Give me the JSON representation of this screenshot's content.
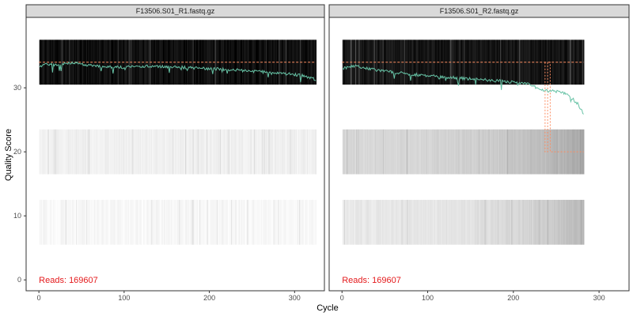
{
  "chart_data": {
    "type": "line",
    "xlabel": "Cycle",
    "ylabel": "Quality Score",
    "ylim": [
      -1.7,
      41
    ],
    "yticks": [
      0,
      10,
      20,
      30
    ],
    "xticks": [
      0,
      100,
      200,
      300
    ],
    "grid": false,
    "colors": {
      "mean_line": "#66c2a5",
      "quartile_line": "#fc8d62",
      "reads_text": "#e41a1c",
      "heatmap_dark": "#000000",
      "heatmap_light": "#ffffff"
    },
    "panels": [
      {
        "title": "F13506.S01_R1.fastq.gz",
        "reads_label": "Reads:  169607",
        "xlim": [
          -15,
          335
        ],
        "cycles": 325,
        "median": [
          [
            0,
            34
          ],
          [
            325,
            34
          ]
        ],
        "mean": [
          [
            0,
            33.2
          ],
          [
            10,
            33.8
          ],
          [
            20,
            33.6
          ],
          [
            40,
            33.9
          ],
          [
            60,
            33.5
          ],
          [
            80,
            33.3
          ],
          [
            100,
            33.2
          ],
          [
            120,
            33.4
          ],
          [
            150,
            33.3
          ],
          [
            180,
            33.1
          ],
          [
            200,
            33.0
          ],
          [
            230,
            32.8
          ],
          [
            260,
            32.5
          ],
          [
            290,
            32.2
          ],
          [
            310,
            31.9
          ],
          [
            325,
            31.3
          ]
        ],
        "cumulative": [],
        "heatmap_bands": [
          {
            "ymin": 30.5,
            "ymax": 37.5,
            "intensity": 0.95
          },
          {
            "ymin": 16.5,
            "ymax": 23.5,
            "intensity": 0.06
          },
          {
            "ymin": 5.5,
            "ymax": 12.5,
            "intensity": 0.03
          }
        ]
      },
      {
        "title": "F13506.S01_R2.fastq.gz",
        "reads_label": "Reads:  169607",
        "xlim": [
          -15,
          335
        ],
        "cycles": 282,
        "median": [
          [
            0,
            34
          ],
          [
            282,
            34
          ]
        ],
        "mean": [
          [
            0,
            33.0
          ],
          [
            15,
            33.4
          ],
          [
            30,
            33.0
          ],
          [
            50,
            32.6
          ],
          [
            70,
            32.3
          ],
          [
            90,
            32.0
          ],
          [
            110,
            31.8
          ],
          [
            130,
            31.6
          ],
          [
            150,
            31.4
          ],
          [
            170,
            31.2
          ],
          [
            190,
            31.0
          ],
          [
            210,
            30.7
          ],
          [
            225,
            30.4
          ],
          [
            235,
            29.6
          ],
          [
            245,
            29.5
          ],
          [
            255,
            29.3
          ],
          [
            265,
            28.8
          ],
          [
            275,
            27.5
          ],
          [
            282,
            26.0
          ]
        ],
        "cumulative": [
          [
            237,
            34
          ],
          [
            237,
            20
          ],
          [
            240,
            20
          ],
          [
            240,
            34
          ],
          [
            243,
            34
          ],
          [
            243,
            20
          ],
          [
            282,
            20
          ]
        ],
        "heatmap_bands": [
          {
            "ymin": 30.5,
            "ymax": 37.5,
            "intensity": 0.92
          },
          {
            "ymin": 16.5,
            "ymax": 23.5,
            "intensity": 0.16
          },
          {
            "ymin": 5.5,
            "ymax": 12.5,
            "intensity": 0.09
          }
        ]
      }
    ]
  }
}
